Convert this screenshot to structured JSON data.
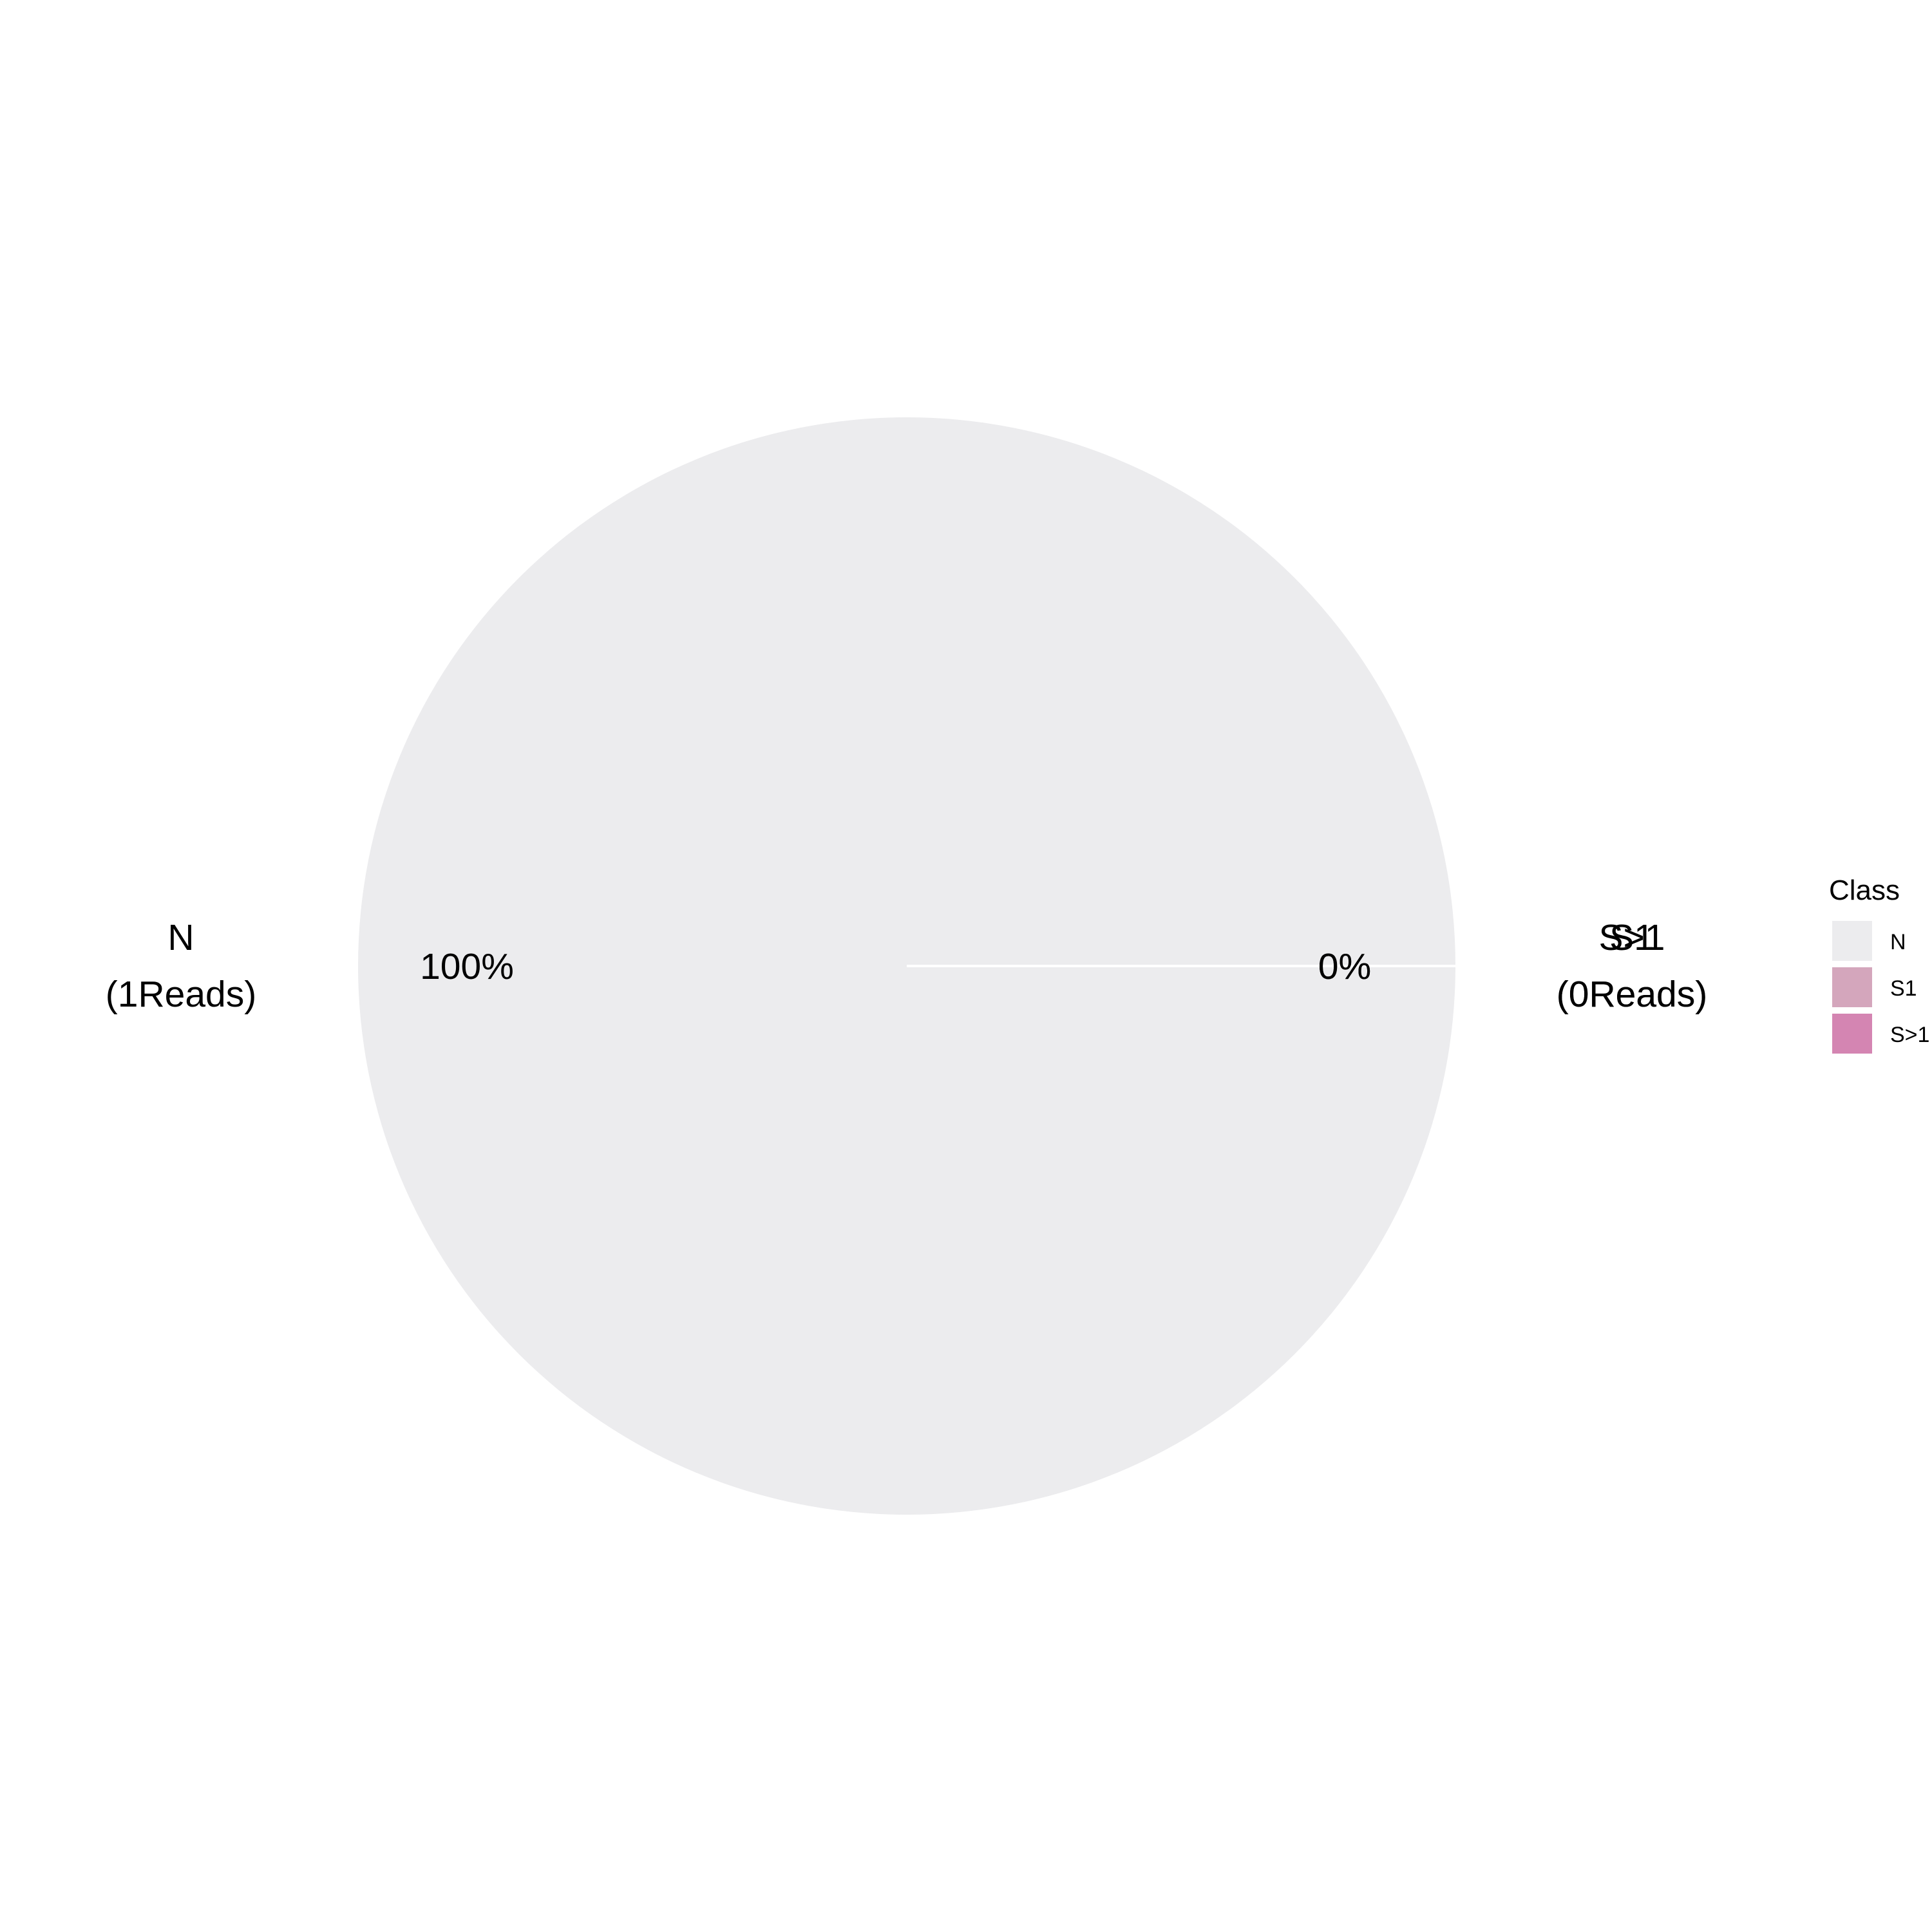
{
  "chart_data": {
    "type": "pie",
    "title": "",
    "slices": [
      {
        "name": "N",
        "reads": 1,
        "percent": 100,
        "outer_label": "N",
        "reads_label": "(1Reads)",
        "percent_label": "100%",
        "color": "#ECECEE"
      },
      {
        "name": "S1",
        "reads": 0,
        "percent": 0,
        "outer_label": "S1",
        "reads_label": "(0Reads)",
        "percent_label": "0%",
        "color": "#D4A6BC"
      },
      {
        "name": "S>1",
        "reads": 0,
        "percent": 0,
        "outer_label": "S>1",
        "reads_label": "(0Reads)",
        "percent_label": "0%",
        "color": "#D485B2"
      }
    ],
    "legend": {
      "title": "Class",
      "placement": "right",
      "entries": [
        "N",
        "S1",
        "S>1"
      ]
    }
  }
}
